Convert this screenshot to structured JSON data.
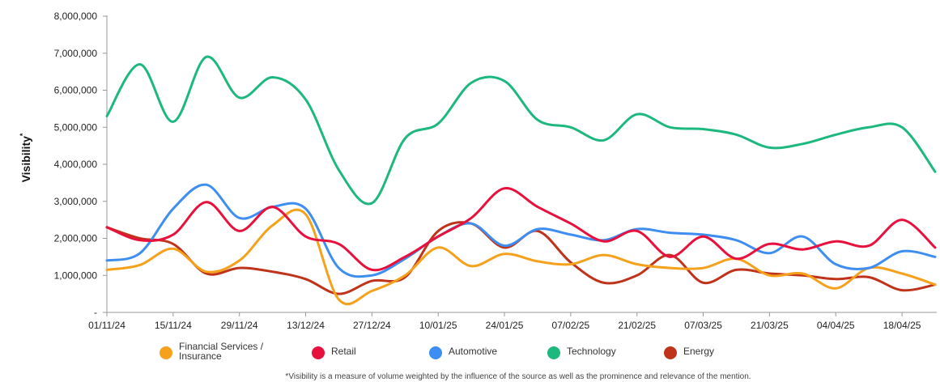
{
  "chart_data": {
    "type": "line",
    "ylabel": "Visibility",
    "ylabel_sup": "*",
    "ylim": [
      0,
      8000000
    ],
    "y_ticks": [
      0,
      1000000,
      2000000,
      3000000,
      4000000,
      5000000,
      6000000,
      7000000,
      8000000
    ],
    "y_tick_labels": [
      "-",
      "1,000,000",
      "2,000,000",
      "3,000,000",
      "4,000,000",
      "5,000,000",
      "6,000,000",
      "7,000,000",
      "8,000,000"
    ],
    "x_tick_labels": [
      "01/11/24",
      "15/11/24",
      "29/11/24",
      "13/12/24",
      "27/12/24",
      "10/01/25",
      "24/01/25",
      "07/02/25",
      "21/02/25",
      "07/03/25",
      "21/03/25",
      "04/04/25",
      "18/04/25"
    ],
    "x_dates": [
      "01/11/24",
      "08/11/24",
      "15/11/24",
      "22/11/24",
      "29/11/24",
      "06/12/24",
      "13/12/24",
      "20/12/24",
      "27/12/24",
      "03/01/25",
      "10/01/25",
      "17/01/25",
      "24/01/25",
      "31/01/25",
      "07/02/25",
      "14/02/25",
      "21/02/25",
      "28/02/25",
      "07/03/25",
      "14/03/25",
      "21/03/25",
      "28/03/25",
      "04/04/25",
      "11/04/25",
      "18/04/25",
      "25/04/25"
    ],
    "legend_position": "bottom",
    "grid": false,
    "series": [
      {
        "name": "Financial Services / Insurance",
        "name_lines": [
          "Financial Services /",
          "Insurance"
        ],
        "color": "#F5A11B",
        "values": [
          1150000,
          1280000,
          1720000,
          1100000,
          1400000,
          2350000,
          2650000,
          350000,
          580000,
          1000000,
          1750000,
          1250000,
          1580000,
          1380000,
          1300000,
          1550000,
          1300000,
          1200000,
          1200000,
          1450000,
          1000000,
          1050000,
          650000,
          1200000,
          1050000,
          750000
        ]
      },
      {
        "name": "Retail",
        "name_lines": [
          "Retail"
        ],
        "color": "#E8103C",
        "values": [
          2300000,
          1950000,
          2100000,
          2980000,
          2200000,
          2850000,
          2050000,
          1850000,
          1150000,
          1500000,
          2050000,
          2550000,
          3350000,
          2850000,
          2400000,
          1920000,
          2200000,
          1500000,
          2050000,
          1450000,
          1850000,
          1700000,
          1920000,
          1800000,
          2500000,
          1750000
        ]
      },
      {
        "name": "Automotive",
        "name_lines": [
          "Automotive"
        ],
        "color": "#3E8EF2",
        "values": [
          1400000,
          1600000,
          2800000,
          3450000,
          2550000,
          2850000,
          2800000,
          1200000,
          1000000,
          1450000,
          2050000,
          2400000,
          1800000,
          2250000,
          2100000,
          1950000,
          2250000,
          2150000,
          2100000,
          1950000,
          1600000,
          2050000,
          1300000,
          1200000,
          1650000,
          1500000
        ]
      },
      {
        "name": "Technology",
        "name_lines": [
          "Technology"
        ],
        "color": "#1DB87E",
        "values": [
          5300000,
          6700000,
          5150000,
          6900000,
          5800000,
          6350000,
          5750000,
          3850000,
          2950000,
          4700000,
          5100000,
          6200000,
          6250000,
          5200000,
          5000000,
          4650000,
          5350000,
          5000000,
          4950000,
          4800000,
          4450000,
          4550000,
          4800000,
          5000000,
          5000000,
          3800000
        ]
      },
      {
        "name": "Energy",
        "name_lines": [
          "Energy"
        ],
        "color": "#C0331B",
        "values": [
          2300000,
          2000000,
          1850000,
          1050000,
          1200000,
          1100000,
          900000,
          500000,
          850000,
          950000,
          2200000,
          2400000,
          1750000,
          2200000,
          1350000,
          800000,
          1000000,
          1550000,
          800000,
          1150000,
          1050000,
          1000000,
          900000,
          950000,
          600000,
          750000
        ]
      }
    ],
    "footnote": "*Visibility is a measure of volume weighted by the influence of the source as well as the prominence and relevance of the mention."
  }
}
